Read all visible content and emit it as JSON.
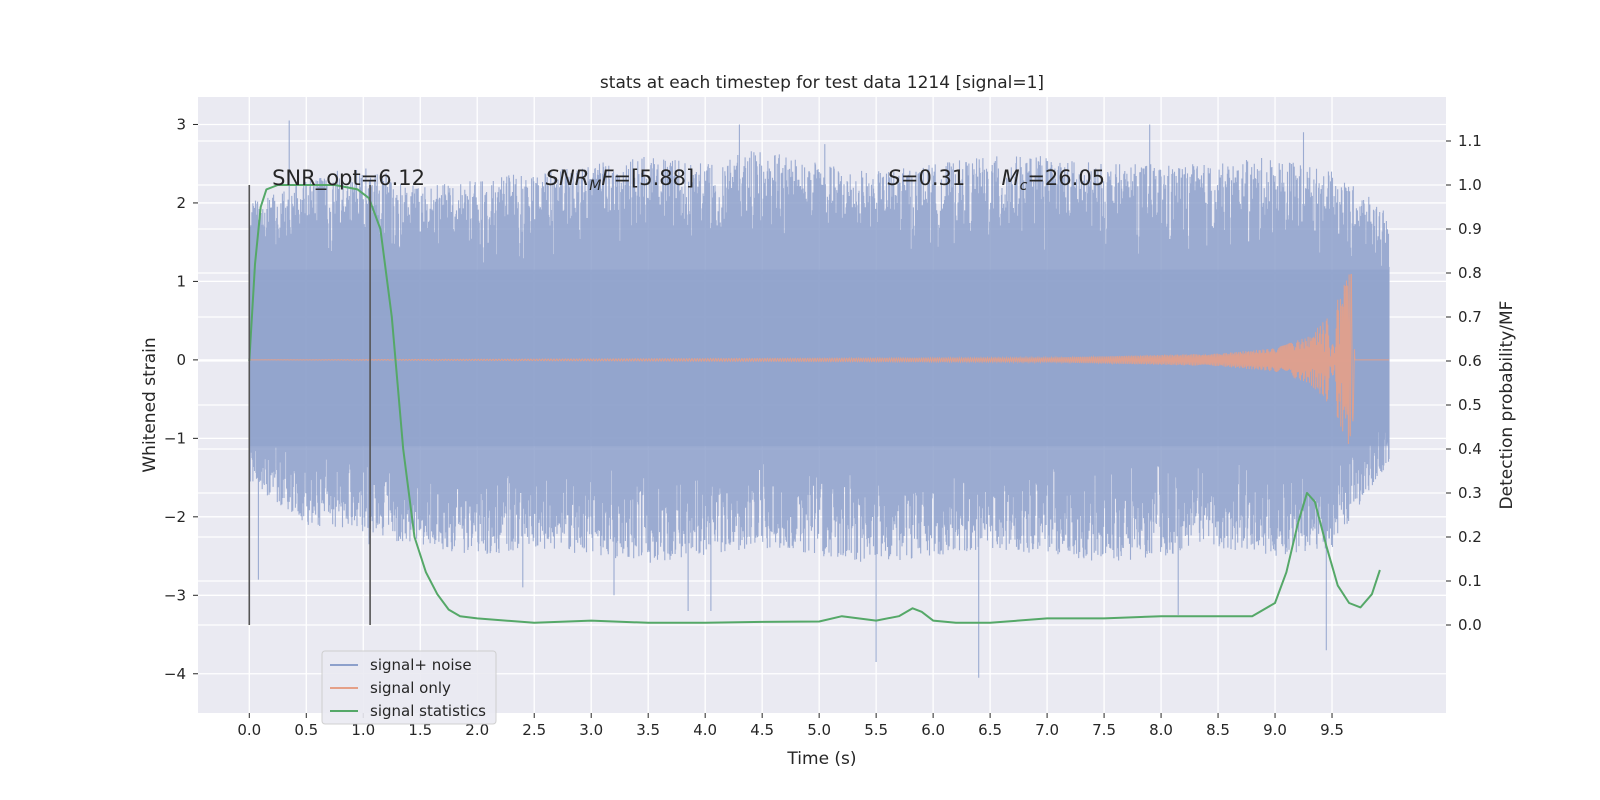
{
  "chart_data": {
    "type": "line",
    "title": "stats at each timestep for test data 1214 [signal=1]",
    "xlabel": "Time (s)",
    "ylabel": "Whitened strain",
    "y2label": "Detection probability/MF",
    "xlim": [
      -0.45,
      10.5
    ],
    "ylim": [
      -4.5,
      3.35
    ],
    "y2lim": [
      -0.2,
      1.2
    ],
    "xticks": [
      0.0,
      0.5,
      1.0,
      1.5,
      2.0,
      2.5,
      3.0,
      3.5,
      4.0,
      4.5,
      5.0,
      5.5,
      6.0,
      6.5,
      7.0,
      7.5,
      8.0,
      8.5,
      9.0,
      9.5
    ],
    "xtick_labels": [
      "0.0",
      "0.5",
      "1.0",
      "1.5",
      "2.0",
      "2.5",
      "3.0",
      "3.5",
      "4.0",
      "4.5",
      "5.0",
      "5.5",
      "6.0",
      "6.5",
      "7.0",
      "7.5",
      "8.0",
      "8.5",
      "9.0",
      "9.5"
    ],
    "yticks": [
      -4,
      -3,
      -2,
      -1,
      0,
      1,
      2,
      3
    ],
    "ytick_labels": [
      "−4",
      "−3",
      "−2",
      "−1",
      "0",
      "1",
      "2",
      "3"
    ],
    "y2ticks": [
      0.0,
      0.1,
      0.2,
      0.3,
      0.4,
      0.5,
      0.6,
      0.7,
      0.8,
      0.9,
      1.0,
      1.1
    ],
    "y2tick_labels": [
      "0.0",
      "0.1",
      "0.2",
      "0.3",
      "0.4",
      "0.5",
      "0.6",
      "0.7",
      "0.8",
      "0.9",
      "1.0",
      "1.1"
    ],
    "grid": true,
    "legend_position": "lower-left",
    "annotations": [
      {
        "label": "SNR_opt=6.12",
        "x": 0.2
      },
      {
        "label": "SNR",
        "sub": "M",
        "suffix": "F=[5.88]",
        "x": 2.6
      },
      {
        "label": "S",
        "suffix": "=0.31",
        "x": 5.6
      },
      {
        "label": "M",
        "sub": "c",
        "suffix": "=26.05",
        "x": 6.6
      }
    ],
    "vlines": [
      0.0,
      1.06
    ],
    "series": [
      {
        "name": "signal+ noise",
        "color": "#8da0cb",
        "axis": "left",
        "envelope": {
          "x": [
            0.0,
            0.5,
            1.0,
            1.5,
            2.0,
            2.5,
            3.0,
            3.5,
            4.0,
            4.5,
            5.0,
            5.5,
            6.0,
            6.5,
            7.0,
            7.5,
            8.0,
            8.5,
            9.0,
            9.5,
            10.0
          ],
          "hi": [
            2.0,
            2.3,
            2.5,
            2.2,
            2.3,
            2.4,
            2.5,
            2.6,
            2.5,
            2.7,
            2.5,
            2.4,
            2.5,
            2.6,
            2.6,
            2.5,
            2.5,
            2.5,
            2.6,
            2.4,
            1.9
          ],
          "lo": [
            -1.6,
            -2.1,
            -2.2,
            -2.4,
            -2.5,
            -2.4,
            -2.5,
            -2.6,
            -2.5,
            -2.4,
            -2.5,
            -2.6,
            -2.5,
            -2.4,
            -2.5,
            -2.6,
            -2.5,
            -2.4,
            -2.5,
            -2.4,
            -1.3
          ]
        },
        "spikes": [
          {
            "x": 0.35,
            "y": 3.05
          },
          {
            "x": 0.08,
            "y": -2.8
          },
          {
            "x": 2.4,
            "y": -2.9
          },
          {
            "x": 3.2,
            "y": -3.0
          },
          {
            "x": 3.85,
            "y": -3.2
          },
          {
            "x": 4.05,
            "y": -3.2
          },
          {
            "x": 4.3,
            "y": 3.0
          },
          {
            "x": 5.5,
            "y": -3.85
          },
          {
            "x": 6.4,
            "y": -4.05
          },
          {
            "x": 7.9,
            "y": 3.0
          },
          {
            "x": 8.15,
            "y": -3.25
          },
          {
            "x": 9.45,
            "y": -3.7
          },
          {
            "x": 9.25,
            "y": 2.9
          },
          {
            "x": 5.05,
            "y": 2.75
          },
          {
            "x": 1.05,
            "y": -2.35
          }
        ]
      },
      {
        "name": "signal only",
        "color": "#e5a088",
        "axis": "left",
        "envelope": {
          "x": [
            0.0,
            7.0,
            8.5,
            9.0,
            9.3,
            9.5,
            9.62,
            9.68,
            9.7,
            10.0
          ],
          "amp": [
            0.0,
            0.03,
            0.08,
            0.15,
            0.3,
            0.6,
            1.0,
            1.25,
            0.0,
            0.0
          ]
        }
      },
      {
        "name": "signal statistics",
        "color": "#55a868",
        "axis": "right",
        "x": [
          0.0,
          0.05,
          0.1,
          0.15,
          0.25,
          0.5,
          0.75,
          0.95,
          1.05,
          1.15,
          1.25,
          1.35,
          1.45,
          1.55,
          1.65,
          1.75,
          1.85,
          2.0,
          2.5,
          3.0,
          3.5,
          4.0,
          4.5,
          5.0,
          5.2,
          5.5,
          5.7,
          5.82,
          5.9,
          6.0,
          6.2,
          6.5,
          7.0,
          7.5,
          8.0,
          8.5,
          8.8,
          9.0,
          9.1,
          9.2,
          9.28,
          9.35,
          9.45,
          9.55,
          9.65,
          9.75,
          9.85,
          9.92
        ],
        "values": [
          0.6,
          0.82,
          0.95,
          0.99,
          1.0,
          1.0,
          1.0,
          0.99,
          0.97,
          0.9,
          0.7,
          0.4,
          0.2,
          0.12,
          0.07,
          0.035,
          0.02,
          0.015,
          0.005,
          0.01,
          0.005,
          0.005,
          0.007,
          0.008,
          0.02,
          0.01,
          0.02,
          0.038,
          0.03,
          0.01,
          0.005,
          0.005,
          0.015,
          0.015,
          0.02,
          0.02,
          0.02,
          0.05,
          0.12,
          0.23,
          0.3,
          0.28,
          0.18,
          0.09,
          0.05,
          0.04,
          0.07,
          0.125
        ]
      }
    ]
  }
}
